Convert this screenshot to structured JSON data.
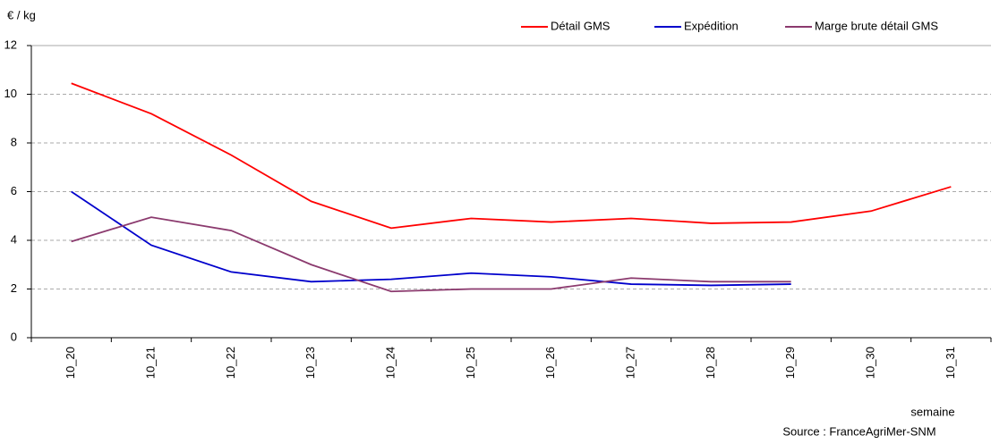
{
  "chart_data": {
    "type": "line",
    "y_label": "€ / kg",
    "x_label": "semaine",
    "source": "Source : FranceAgriMer-SNM",
    "categories": [
      "10_20",
      "10_21",
      "10_22",
      "10_23",
      "10_24",
      "10_25",
      "10_26",
      "10_27",
      "10_28",
      "10_29",
      "10_30",
      "10_31"
    ],
    "series": [
      {
        "name": "Détail GMS",
        "color": "#ff0000",
        "values": [
          10.45,
          9.2,
          7.5,
          5.6,
          4.5,
          4.9,
          4.75,
          4.9,
          4.7,
          4.75,
          5.2,
          6.2
        ]
      },
      {
        "name": "Expédition",
        "color": "#0000cc",
        "values": [
          6.0,
          3.8,
          2.7,
          2.3,
          2.4,
          2.65,
          2.5,
          2.2,
          2.15,
          2.2,
          null,
          null
        ]
      },
      {
        "name": "Marge brute détail GMS",
        "color": "#8b3a6e",
        "values": [
          3.95,
          4.95,
          4.4,
          3.0,
          1.9,
          2.0,
          2.0,
          2.45,
          2.3,
          2.3,
          null,
          null
        ]
      }
    ],
    "ylim": [
      0,
      12
    ],
    "yticks": [
      0,
      2,
      4,
      6,
      8,
      10,
      12
    ],
    "grid": true
  }
}
